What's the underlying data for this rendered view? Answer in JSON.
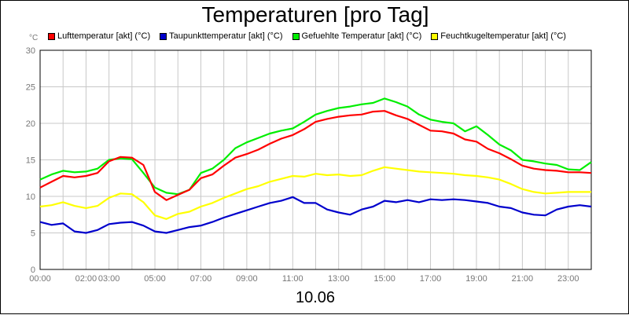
{
  "chart_data": {
    "type": "line",
    "title": "Temperaturen [pro Tag]",
    "unit": "°C",
    "date": "10.06",
    "ylim": [
      0,
      30
    ],
    "y_ticks": [
      0,
      5,
      10,
      15,
      20,
      25,
      30
    ],
    "xlim_hours": [
      0,
      24
    ],
    "x_ticks": [
      {
        "label": "00:00",
        "h": 0
      },
      {
        "label": "02:00",
        "h": 2
      },
      {
        "label": "03:00",
        "h": 3
      },
      {
        "label": "05:00",
        "h": 5
      },
      {
        "label": "07:00",
        "h": 7
      },
      {
        "label": "09:00",
        "h": 9
      },
      {
        "label": "11:00",
        "h": 11
      },
      {
        "label": "13:00",
        "h": 13
      },
      {
        "label": "15:00",
        "h": 15
      },
      {
        "label": "17:00",
        "h": 17
      },
      {
        "label": "19:00",
        "h": 19
      },
      {
        "label": "21:00",
        "h": 21
      },
      {
        "label": "23:00",
        "h": 23
      }
    ],
    "grid": true,
    "legend_position": "top",
    "x": [
      "00:00",
      "00:30",
      "01:00",
      "01:30",
      "02:00",
      "02:30",
      "03:00",
      "03:30",
      "04:00",
      "04:30",
      "05:00",
      "05:30",
      "06:00",
      "06:30",
      "07:00",
      "07:30",
      "08:00",
      "08:30",
      "09:00",
      "09:30",
      "10:00",
      "10:30",
      "11:00",
      "11:30",
      "12:00",
      "12:30",
      "13:00",
      "13:30",
      "14:00",
      "14:30",
      "15:00",
      "15:30",
      "16:00",
      "16:30",
      "17:00",
      "17:30",
      "18:00",
      "18:30",
      "19:00",
      "19:30",
      "20:00",
      "20:30",
      "21:00",
      "21:30",
      "22:00",
      "22:30",
      "23:00",
      "23:30",
      "24:00"
    ],
    "series": [
      {
        "name": "Lufttemperatur [akt] (°C)",
        "color": "#ff0000",
        "values": [
          11.2,
          12.0,
          12.8,
          12.6,
          12.8,
          13.2,
          14.8,
          15.4,
          15.3,
          14.3,
          10.6,
          9.5,
          10.2,
          10.9,
          12.5,
          13.0,
          14.2,
          15.3,
          15.8,
          16.4,
          17.2,
          17.9,
          18.4,
          19.2,
          20.2,
          20.6,
          20.9,
          21.1,
          21.2,
          21.6,
          21.7,
          21.1,
          20.6,
          19.8,
          19.0,
          18.9,
          18.6,
          17.8,
          17.5,
          16.5,
          15.9,
          15.1,
          14.2,
          13.8,
          13.6,
          13.5,
          13.3,
          13.3,
          13.2
        ]
      },
      {
        "name": "Taupunkttemperatur [akt] (°C)",
        "color": "#0000cc",
        "values": [
          6.5,
          6.1,
          6.3,
          5.2,
          5.0,
          5.4,
          6.2,
          6.4,
          6.5,
          6.0,
          5.2,
          5.0,
          5.4,
          5.8,
          6.0,
          6.5,
          7.1,
          7.6,
          8.1,
          8.6,
          9.1,
          9.4,
          9.9,
          9.1,
          9.1,
          8.2,
          7.8,
          7.5,
          8.2,
          8.6,
          9.4,
          9.2,
          9.5,
          9.2,
          9.6,
          9.5,
          9.6,
          9.5,
          9.3,
          9.1,
          8.6,
          8.4,
          7.8,
          7.5,
          7.4,
          8.2,
          8.6,
          8.8,
          8.6
        ]
      },
      {
        "name": "Gefuehlte Temperatur [akt] (°C)",
        "color": "#00ee00",
        "values": [
          12.3,
          13.0,
          13.5,
          13.3,
          13.4,
          13.8,
          15.0,
          15.2,
          15.1,
          13.2,
          11.2,
          10.5,
          10.3,
          10.9,
          13.2,
          13.8,
          15.0,
          16.6,
          17.4,
          18.0,
          18.6,
          19.0,
          19.3,
          20.2,
          21.2,
          21.7,
          22.1,
          22.3,
          22.6,
          22.8,
          23.4,
          22.9,
          22.3,
          21.2,
          20.5,
          20.2,
          20.0,
          18.9,
          19.6,
          18.4,
          17.1,
          16.3,
          15.0,
          14.8,
          14.5,
          14.3,
          13.7,
          13.6,
          14.7
        ]
      },
      {
        "name": "Feuchtkugeltemperatur [akt] (°C)",
        "color": "#ffff00",
        "values": [
          8.6,
          8.8,
          9.2,
          8.7,
          8.4,
          8.7,
          9.8,
          10.4,
          10.3,
          9.2,
          7.4,
          6.9,
          7.6,
          7.9,
          8.6,
          9.1,
          9.8,
          10.4,
          11.0,
          11.4,
          12.0,
          12.4,
          12.8,
          12.7,
          13.1,
          12.9,
          13.0,
          12.8,
          12.9,
          13.5,
          14.0,
          13.8,
          13.6,
          13.4,
          13.3,
          13.2,
          13.1,
          12.9,
          12.8,
          12.6,
          12.3,
          11.7,
          11.0,
          10.6,
          10.4,
          10.5,
          10.6,
          10.6,
          10.6
        ]
      }
    ]
  }
}
